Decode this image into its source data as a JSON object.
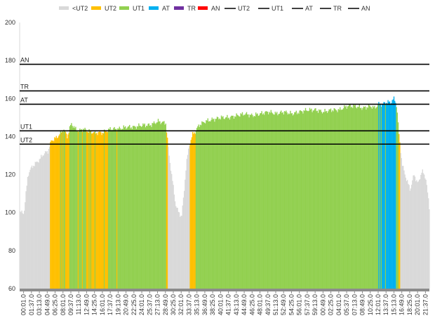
{
  "chart_data": {
    "type": "area",
    "title": "",
    "xlabel": "",
    "ylabel": "",
    "ylim": [
      60,
      200
    ],
    "yticks": [
      60,
      80,
      100,
      120,
      140,
      160,
      180,
      200
    ],
    "grid": false,
    "legend_position": "top",
    "legend": [
      {
        "label": "<UT2",
        "kind": "fill",
        "color": "#d9d9d9"
      },
      {
        "label": "UT2",
        "kind": "fill",
        "color": "#ffc000"
      },
      {
        "label": "UT1",
        "kind": "fill",
        "color": "#92d050"
      },
      {
        "label": "AT",
        "kind": "fill",
        "color": "#00b0f0"
      },
      {
        "label": "TR",
        "kind": "fill",
        "color": "#7030a0"
      },
      {
        "label": "AN",
        "kind": "fill",
        "color": "#ff0000"
      },
      {
        "label": "UT2",
        "kind": "line",
        "color": "#000000"
      },
      {
        "label": "UT1",
        "kind": "line",
        "color": "#000000"
      },
      {
        "label": "AT",
        "kind": "line",
        "color": "#000000"
      },
      {
        "label": "TR",
        "kind": "line",
        "color": "#000000"
      },
      {
        "label": "AN",
        "kind": "line",
        "color": "#000000"
      }
    ],
    "thresholds": [
      {
        "label": "UT2",
        "value": 136
      },
      {
        "label": "UT1",
        "value": 143
      },
      {
        "label": "AT",
        "value": 157
      },
      {
        "label": "TR",
        "value": 164
      },
      {
        "label": "AN",
        "value": 178
      }
    ],
    "x_ticks": [
      "00:01.0",
      "01:37.0",
      "03:13.0",
      "04:49.0",
      "06:25.0",
      "08:01.0",
      "09:37.0",
      "11:13.0",
      "12:49.0",
      "14:25.0",
      "16:01.0",
      "17:37.0",
      "19:13.0",
      "20:49.0",
      "22:25.0",
      "24:01.0",
      "25:37.0",
      "27:13.0",
      "28:49.0",
      "30:25.0",
      "32:01.0",
      "33:37.0",
      "35:13.0",
      "36:49.0",
      "38:25.0",
      "40:01.0",
      "41:37.0",
      "43:13.0",
      "44:49.0",
      "46:25.0",
      "48:01.0",
      "49:37.0",
      "51:13.0",
      "52:49.0",
      "54:25.0",
      "56:01.0",
      "57:37.0",
      "59:13.0",
      "00:49.0",
      "02:25.0",
      "04:01.0",
      "05:37.0",
      "07:13.0",
      "08:49.0",
      "10:25.0",
      "12:01.0",
      "13:37.0",
      "15:13.0",
      "16:49.0",
      "18:25.0",
      "20:01.0",
      "21:37.0"
    ],
    "series": [
      {
        "name": "Heart rate",
        "x_index": [
          0,
          0.5,
          1,
          1.5,
          2,
          2.5,
          3,
          3.5,
          4,
          4.5,
          5,
          5.5,
          6,
          6.5,
          7,
          7.5,
          8,
          9,
          10,
          11,
          12,
          13,
          14,
          15,
          16,
          17,
          18,
          18.4,
          18.8,
          19.2,
          19.6,
          20,
          20.3,
          20.6,
          21,
          21.4,
          21.8,
          22.2,
          22.6,
          23,
          24,
          25,
          26,
          27,
          28,
          29,
          30,
          31,
          32,
          33,
          34,
          35,
          36,
          37,
          38,
          39,
          40,
          41,
          42,
          43,
          44,
          44.5,
          45,
          45.5,
          46,
          46.5,
          47,
          47.3,
          47.6,
          48,
          48.5,
          49,
          49.5,
          50,
          50.5,
          51,
          51.5,
          52
        ],
        "values": [
          100,
          120,
          124,
          126,
          128,
          131,
          132,
          138,
          139,
          141,
          144,
          140,
          147,
          144,
          143,
          144,
          143,
          142,
          142,
          144,
          144,
          145,
          145,
          146,
          146,
          148,
          147,
          130,
          118,
          105,
          100,
          98,
          110,
          126,
          136,
          141,
          143,
          146,
          147,
          148,
          149,
          150,
          150,
          151,
          152,
          151,
          152,
          153,
          152,
          153,
          152,
          153,
          154,
          154,
          153,
          154,
          154,
          156,
          156,
          155,
          156,
          155,
          157,
          157,
          158,
          158,
          160,
          156,
          140,
          125,
          118,
          112,
          120,
          115,
          122,
          118,
          100,
          88
        ]
      }
    ]
  }
}
